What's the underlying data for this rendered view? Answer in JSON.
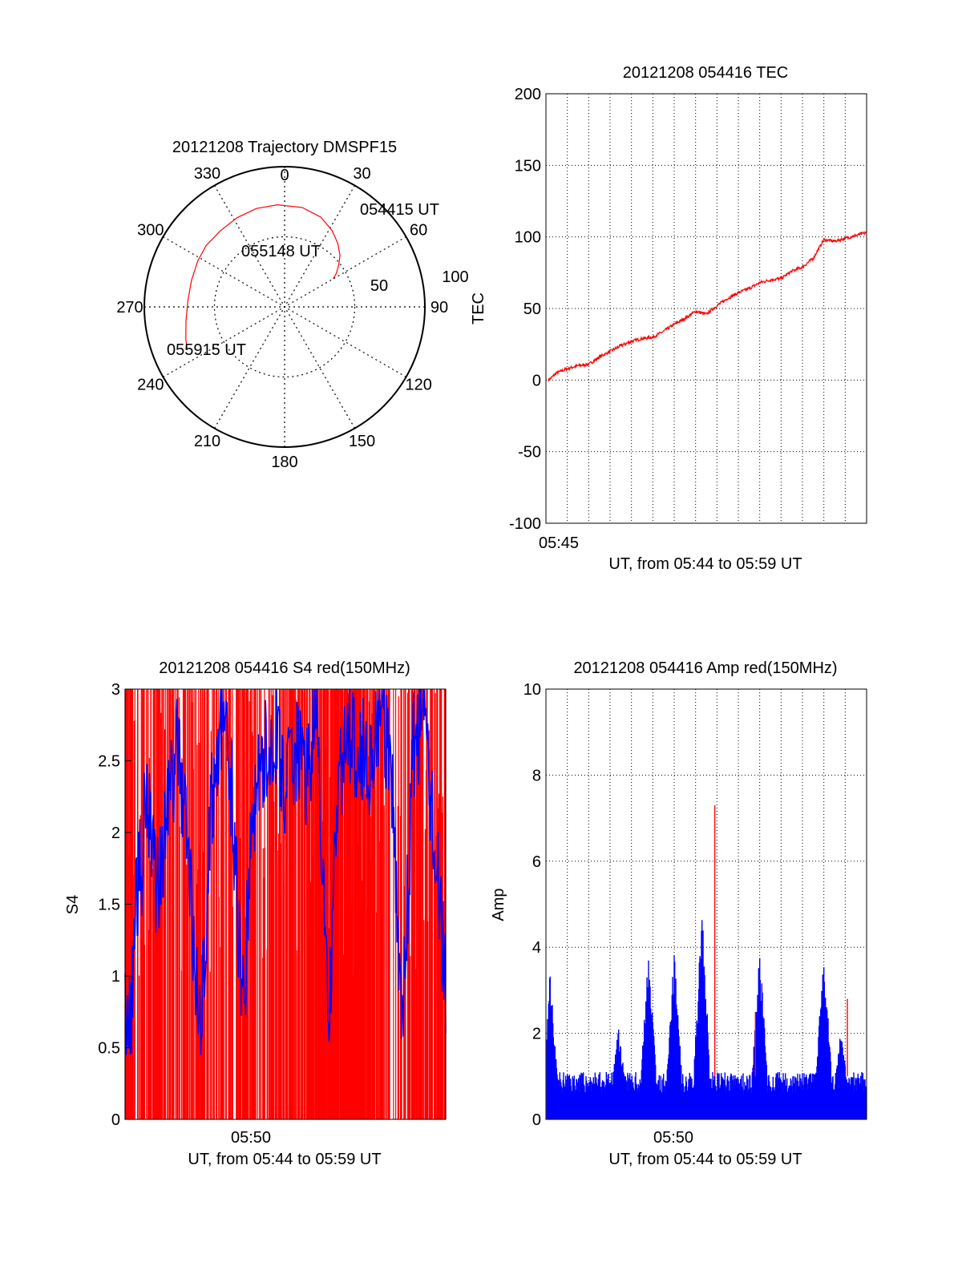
{
  "colors": {
    "red": "#ff0000",
    "blue": "#0000ff",
    "axis": "#000000",
    "grid": "#000000"
  },
  "chart_data": [
    {
      "type": "polar",
      "title": "20121208 Trajectory DMSPF15",
      "azimuth_labels": [
        "0",
        "30",
        "60",
        "90",
        "120",
        "150",
        "180",
        "210",
        "240",
        "270",
        "300",
        "330"
      ],
      "radial_labels": [
        "50",
        "100"
      ],
      "series": [
        {
          "color": "red",
          "points": [
            {
              "az": 60,
              "r": 40
            },
            {
              "az": 57,
              "r": 44
            },
            {
              "az": 52,
              "r": 49
            },
            {
              "az": 47,
              "r": 54
            },
            {
              "az": 40,
              "r": 59
            },
            {
              "az": 32,
              "r": 64
            },
            {
              "az": 22,
              "r": 69
            },
            {
              "az": 10,
              "r": 72
            },
            {
              "az": -4,
              "r": 73
            },
            {
              "az": -16,
              "r": 73
            },
            {
              "az": -28,
              "r": 72
            },
            {
              "az": -40,
              "r": 71
            },
            {
              "az": -52,
              "r": 71
            },
            {
              "az": -62,
              "r": 70
            },
            {
              "az": -74,
              "r": 69
            },
            {
              "az": -86,
              "r": 69
            },
            {
              "az": -98,
              "r": 71
            },
            {
              "az": -108,
              "r": 74
            },
            {
              "az": -114,
              "r": 76
            }
          ]
        }
      ],
      "annotations": [
        "054415 UT",
        "055148 UT",
        "055915 UT"
      ]
    },
    {
      "type": "line",
      "title": "20121208 054416 TEC",
      "ylabel": "TEC",
      "xlabel": "UT, from 05:44 to 05:59 UT",
      "x_tick_labels": [
        "05:45"
      ],
      "y_ticks": [
        "200",
        "150",
        "100",
        "50",
        "0",
        "-50",
        "-100"
      ],
      "xlim": [
        0,
        15
      ],
      "ylim": [
        -100,
        200
      ],
      "grid": true,
      "series": [
        {
          "color": "red",
          "x": [
            0.12,
            0.5,
            1,
            1.5,
            2,
            2.5,
            3,
            3.5,
            4,
            4.5,
            5,
            5.5,
            6,
            6.5,
            7,
            7.5,
            8,
            8.5,
            9,
            9.5,
            10,
            10.5,
            11,
            11.5,
            12,
            12.5,
            13,
            13.5,
            14,
            14.5,
            15
          ],
          "y": [
            0,
            5,
            8,
            10,
            11,
            16,
            20,
            24,
            27,
            29,
            30,
            34,
            39,
            43,
            48,
            46,
            52,
            57,
            61,
            64,
            68,
            70,
            71,
            76,
            79,
            85,
            98,
            97,
            99,
            101,
            103
          ]
        }
      ]
    },
    {
      "type": "line",
      "title": "20121208 054416 S4 red(150MHz)",
      "ylabel": "S4",
      "xlabel": "UT, from 05:44 to 05:59 UT",
      "x_tick_labels": [
        "05:50"
      ],
      "y_ticks": [
        "3",
        "2.5",
        "2",
        "1.5",
        "1",
        "0.5",
        "0"
      ],
      "xlim": [
        0,
        15
      ],
      "ylim": [
        0,
        3
      ],
      "series": [
        {
          "color": "blue",
          "x": [
            0,
            0.3,
            0.5,
            0.8,
            1,
            1.5,
            2,
            2.5,
            3,
            3.5,
            4,
            4.5,
            5,
            5.5,
            6,
            6.5,
            7,
            7.5,
            8,
            8.5,
            9,
            9.5,
            10,
            10.5,
            11,
            11.5,
            12,
            12.5,
            13,
            13.5,
            14,
            14.5,
            15
          ],
          "y": [
            0.7,
            0.7,
            1.6,
            1.8,
            2.4,
            1.6,
            2.2,
            2.6,
            1.8,
            0.5,
            2.1,
            2.8,
            2.3,
            0.7,
            2.2,
            2.5,
            2.7,
            2.3,
            2.6,
            2.4,
            2.8,
            0.6,
            2.4,
            2.7,
            2.6,
            2.5,
            2.9,
            2.2,
            0.7,
            2.6,
            2.8,
            1.9,
            0.9
          ]
        },
        {
          "color": "red",
          "note": "dense spiking between 0 and 3 (off-scale)"
        }
      ]
    },
    {
      "type": "bar",
      "title": "20121208 054416 Amp red(150MHz)",
      "ylabel": "Amp",
      "xlabel": "UT, from 05:44 to 05:59 UT",
      "x_tick_labels": [
        "05:50"
      ],
      "y_ticks": [
        "10",
        "8",
        "6",
        "4",
        "2",
        "0"
      ],
      "xlim": [
        0,
        15
      ],
      "ylim": [
        0,
        10
      ],
      "grid": true,
      "series": [
        {
          "color": "blue",
          "peaks": [
            {
              "x": 0.2,
              "y": 3.5
            },
            {
              "x": 3.4,
              "y": 2.2
            },
            {
              "x": 4.8,
              "y": 3.9
            },
            {
              "x": 6.0,
              "y": 3.9
            },
            {
              "x": 7.3,
              "y": 4.9
            },
            {
              "x": 10.0,
              "y": 4.0
            },
            {
              "x": 13.0,
              "y": 4.1
            },
            {
              "x": 13.8,
              "y": 2.2
            }
          ]
        },
        {
          "color": "red",
          "peaks": [
            {
              "x": 7.9,
              "y": 7.3
            },
            {
              "x": 9.8,
              "y": 2.5
            },
            {
              "x": 14.1,
              "y": 2.8
            }
          ]
        }
      ]
    }
  ]
}
